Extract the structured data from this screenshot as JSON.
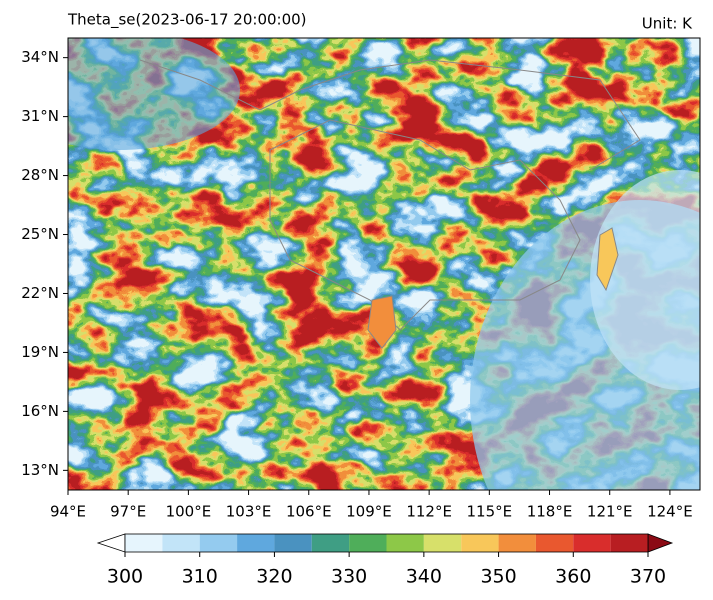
{
  "chart_data": {
    "type": "contour_map",
    "title": "Theta_se(2023-06-17 20:00:00)",
    "unit": "Unit: K",
    "xlim": [
      94,
      125.5
    ],
    "ylim": [
      12,
      35
    ],
    "xticks": [
      {
        "value": 94,
        "label": "94°E"
      },
      {
        "value": 97,
        "label": "97°E"
      },
      {
        "value": 100,
        "label": "100°E"
      },
      {
        "value": 103,
        "label": "103°E"
      },
      {
        "value": 106,
        "label": "106°E"
      },
      {
        "value": 109,
        "label": "109°E"
      },
      {
        "value": 112,
        "label": "112°E"
      },
      {
        "value": 115,
        "label": "115°E"
      },
      {
        "value": 118,
        "label": "118°E"
      },
      {
        "value": 121,
        "label": "121°E"
      },
      {
        "value": 124,
        "label": "124°E"
      }
    ],
    "yticks": [
      {
        "value": 13,
        "label": "13°N"
      },
      {
        "value": 16,
        "label": "16°N"
      },
      {
        "value": 19,
        "label": "19°N"
      },
      {
        "value": 22,
        "label": "22°N"
      },
      {
        "value": 25,
        "label": "25°N"
      },
      {
        "value": 28,
        "label": "28°N"
      },
      {
        "value": 31,
        "label": "31°N"
      },
      {
        "value": 34,
        "label": "34°N"
      }
    ],
    "colorbar": {
      "levels": [
        300,
        305,
        310,
        315,
        320,
        325,
        330,
        335,
        340,
        345,
        350,
        355,
        360,
        365,
        370
      ],
      "colors": [
        "#e6f5fd",
        "#c2e4f8",
        "#94cbef",
        "#5fa8de",
        "#4a92c0",
        "#3f9e84",
        "#4fae5a",
        "#8dc848",
        "#d7e06a",
        "#f8c75a",
        "#f28e3c",
        "#e9582f",
        "#d92d2c",
        "#b81e22"
      ],
      "under_color": "#ffffff",
      "over_color": "#8b0a14",
      "ticks": [
        300,
        310,
        320,
        330,
        340,
        350,
        360,
        370
      ]
    }
  }
}
